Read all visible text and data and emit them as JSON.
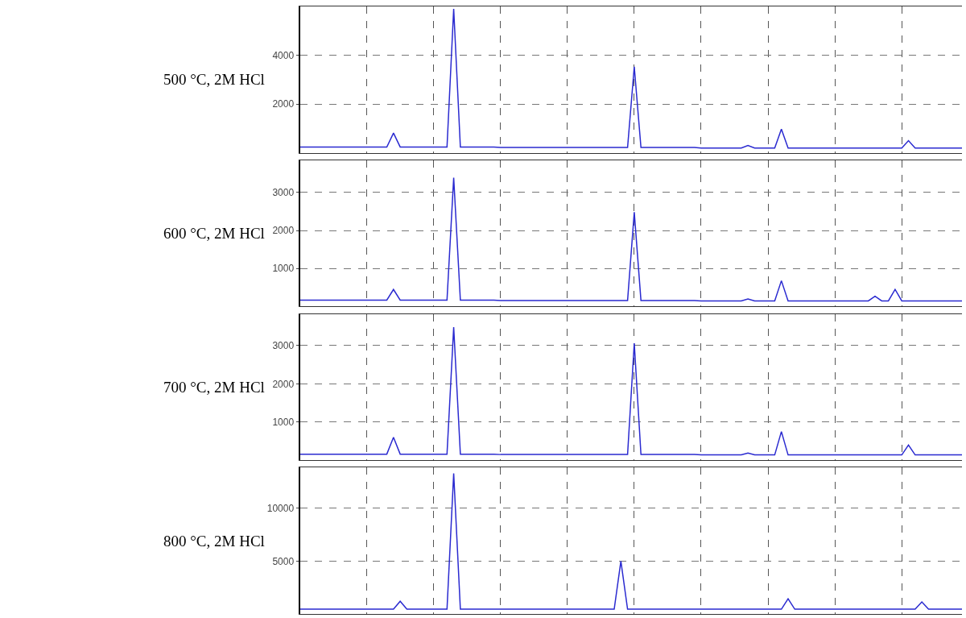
{
  "chart_data": [
    {
      "type": "line",
      "title": "500 °C, 2M HCl",
      "categories": [
        null,
        null,
        null,
        null,
        null,
        null,
        null,
        null,
        null,
        null,
        null,
        null,
        null,
        null,
        null,
        null,
        null,
        null,
        null,
        null,
        null,
        null,
        null,
        null,
        null,
        null,
        null,
        null,
        null,
        null,
        null,
        null,
        null,
        null,
        null,
        null,
        null,
        null,
        null,
        null,
        null,
        null,
        null,
        null,
        null,
        null,
        null,
        null,
        null,
        null,
        null,
        null,
        null,
        null,
        null,
        null,
        null,
        null,
        null,
        null,
        null,
        null,
        null,
        null,
        null,
        null,
        null,
        null,
        null,
        null,
        null,
        null,
        null,
        null,
        null,
        null,
        null,
        null,
        null,
        null,
        null,
        null,
        null,
        null,
        null,
        null,
        null,
        null,
        null,
        null,
        null,
        null,
        null,
        null,
        null,
        null,
        null,
        null,
        null,
        null
      ],
      "series": [
        {
          "color": "#2a2ad0",
          "values": [
            240,
            240,
            240,
            240,
            240,
            240,
            240,
            240,
            240,
            240,
            240,
            240,
            240,
            240,
            810,
            240,
            240,
            240,
            240,
            240,
            240,
            240,
            240,
            5900,
            240,
            240,
            240,
            240,
            240,
            240,
            220,
            220,
            220,
            220,
            220,
            220,
            220,
            220,
            220,
            220,
            220,
            220,
            220,
            220,
            220,
            220,
            220,
            220,
            220,
            220,
            3530,
            220,
            220,
            220,
            220,
            220,
            220,
            220,
            220,
            220,
            200,
            200,
            200,
            200,
            200,
            200,
            200,
            300,
            200,
            200,
            200,
            200,
            970,
            200,
            200,
            200,
            200,
            200,
            200,
            200,
            200,
            200,
            200,
            200,
            200,
            200,
            200,
            200,
            200,
            200,
            200,
            500,
            200,
            200,
            200,
            200,
            200,
            200,
            200,
            200
          ]
        }
      ],
      "ylim": [
        0,
        6000
      ],
      "yticks": [
        2000,
        4000
      ],
      "grid": true,
      "tick_labels": "y",
      "line_style": "solid",
      "marker": "none"
    },
    {
      "type": "line",
      "title": "600 °C, 2M HCl",
      "categories": [
        null,
        null,
        null,
        null,
        null,
        null,
        null,
        null,
        null,
        null,
        null,
        null,
        null,
        null,
        null,
        null,
        null,
        null,
        null,
        null,
        null,
        null,
        null,
        null,
        null,
        null,
        null,
        null,
        null,
        null,
        null,
        null,
        null,
        null,
        null,
        null,
        null,
        null,
        null,
        null,
        null,
        null,
        null,
        null,
        null,
        null,
        null,
        null,
        null,
        null,
        null,
        null,
        null,
        null,
        null,
        null,
        null,
        null,
        null,
        null,
        null,
        null,
        null,
        null,
        null,
        null,
        null,
        null,
        null,
        null,
        null,
        null,
        null,
        null,
        null,
        null,
        null,
        null,
        null,
        null,
        null,
        null,
        null,
        null,
        null,
        null,
        null,
        null,
        null,
        null,
        null,
        null,
        null,
        null,
        null,
        null,
        null,
        null,
        null,
        null
      ],
      "series": [
        {
          "color": "#2a2ad0",
          "values": [
            170,
            170,
            170,
            170,
            170,
            170,
            170,
            170,
            170,
            170,
            170,
            170,
            170,
            170,
            450,
            170,
            170,
            170,
            170,
            170,
            170,
            170,
            170,
            3390,
            170,
            170,
            170,
            170,
            170,
            170,
            160,
            160,
            160,
            160,
            160,
            160,
            160,
            160,
            160,
            160,
            160,
            160,
            160,
            160,
            160,
            160,
            160,
            160,
            160,
            160,
            2480,
            160,
            160,
            160,
            160,
            160,
            160,
            160,
            160,
            160,
            150,
            150,
            150,
            150,
            150,
            150,
            150,
            200,
            150,
            150,
            150,
            150,
            680,
            150,
            150,
            150,
            150,
            150,
            150,
            150,
            150,
            150,
            150,
            150,
            150,
            150,
            270,
            150,
            150,
            450,
            150,
            150,
            150,
            150,
            150,
            150,
            150,
            150,
            150,
            150
          ]
        }
      ],
      "ylim": [
        0,
        3850
      ],
      "yticks": [
        1000,
        2000,
        3000
      ],
      "grid": true,
      "tick_labels": "y",
      "line_style": "solid",
      "marker": "none"
    },
    {
      "type": "line",
      "title": "700 °C, 2M HCl",
      "categories": [
        null,
        null,
        null,
        null,
        null,
        null,
        null,
        null,
        null,
        null,
        null,
        null,
        null,
        null,
        null,
        null,
        null,
        null,
        null,
        null,
        null,
        null,
        null,
        null,
        null,
        null,
        null,
        null,
        null,
        null,
        null,
        null,
        null,
        null,
        null,
        null,
        null,
        null,
        null,
        null,
        null,
        null,
        null,
        null,
        null,
        null,
        null,
        null,
        null,
        null,
        null,
        null,
        null,
        null,
        null,
        null,
        null,
        null,
        null,
        null,
        null,
        null,
        null,
        null,
        null,
        null,
        null,
        null,
        null,
        null,
        null,
        null,
        null,
        null,
        null,
        null,
        null,
        null,
        null,
        null,
        null,
        null,
        null,
        null,
        null,
        null,
        null,
        null,
        null,
        null,
        null,
        null,
        null,
        null,
        null,
        null,
        null,
        null,
        null,
        null
      ],
      "series": [
        {
          "color": "#2a2ad0",
          "values": [
            160,
            160,
            160,
            160,
            160,
            160,
            160,
            160,
            160,
            160,
            160,
            160,
            160,
            160,
            600,
            160,
            160,
            160,
            160,
            160,
            160,
            160,
            160,
            3480,
            160,
            160,
            160,
            160,
            160,
            160,
            150,
            150,
            150,
            150,
            150,
            150,
            150,
            150,
            150,
            150,
            150,
            150,
            150,
            150,
            150,
            150,
            150,
            150,
            150,
            150,
            3060,
            150,
            150,
            150,
            150,
            150,
            150,
            150,
            150,
            150,
            140,
            140,
            140,
            140,
            140,
            140,
            140,
            190,
            140,
            140,
            140,
            140,
            750,
            140,
            140,
            140,
            140,
            140,
            140,
            140,
            140,
            140,
            140,
            140,
            140,
            140,
            140,
            140,
            140,
            140,
            140,
            400,
            140,
            140,
            140,
            140,
            140,
            140,
            140,
            140
          ]
        }
      ],
      "ylim": [
        0,
        3830
      ],
      "yticks": [
        1000,
        2000,
        3000
      ],
      "grid": true,
      "tick_labels": "y",
      "line_style": "solid",
      "marker": "none"
    },
    {
      "type": "line",
      "title": "800 °C, 2M HCl",
      "categories": [
        null,
        null,
        null,
        null,
        null,
        null,
        null,
        null,
        null,
        null,
        null,
        null,
        null,
        null,
        null,
        null,
        null,
        null,
        null,
        null,
        null,
        null,
        null,
        null,
        null,
        null,
        null,
        null,
        null,
        null,
        null,
        null,
        null,
        null,
        null,
        null,
        null,
        null,
        null,
        null,
        null,
        null,
        null,
        null,
        null,
        null,
        null,
        null,
        null,
        null,
        null,
        null,
        null,
        null,
        null,
        null,
        null,
        null,
        null,
        null,
        null,
        null,
        null,
        null,
        null,
        null,
        null,
        null,
        null,
        null,
        null,
        null,
        null,
        null,
        null,
        null,
        null,
        null,
        null,
        null,
        null,
        null,
        null,
        null,
        null,
        null,
        null,
        null,
        null,
        null,
        null,
        null,
        null,
        null,
        null,
        null,
        null,
        null,
        null,
        null
      ],
      "series": [
        {
          "color": "#2a2ad0",
          "values": [
            450,
            450,
            450,
            450,
            450,
            450,
            450,
            450,
            450,
            450,
            450,
            450,
            450,
            450,
            450,
            1200,
            450,
            450,
            450,
            450,
            450,
            450,
            450,
            13300,
            450,
            450,
            450,
            450,
            450,
            450,
            450,
            450,
            450,
            450,
            450,
            450,
            450,
            450,
            450,
            450,
            450,
            450,
            450,
            450,
            450,
            450,
            450,
            450,
            5000,
            450,
            450,
            450,
            450,
            450,
            450,
            450,
            450,
            450,
            450,
            450,
            450,
            450,
            450,
            450,
            450,
            450,
            450,
            450,
            450,
            450,
            450,
            450,
            450,
            1440,
            450,
            450,
            450,
            450,
            450,
            450,
            450,
            450,
            450,
            450,
            450,
            450,
            450,
            450,
            450,
            450,
            450,
            450,
            450,
            1140,
            450,
            450,
            450,
            450,
            450,
            450
          ]
        }
      ],
      "ylim": [
        0,
        13860
      ],
      "yticks": [
        5000,
        10000
      ],
      "grid": true,
      "tick_labels": "y",
      "line_style": "solid",
      "marker": "none"
    }
  ]
}
